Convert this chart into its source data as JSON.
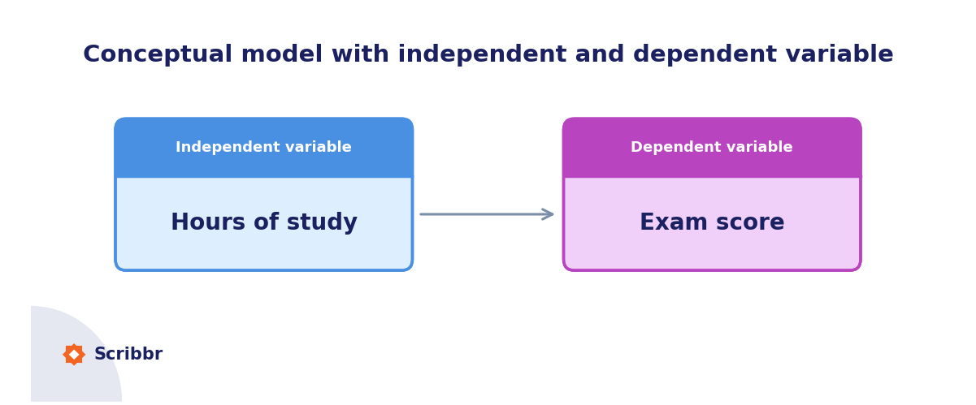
{
  "title": "Conceptual model with independent and dependent variable",
  "title_color": "#1a2060",
  "title_fontsize": 21,
  "background_color": "#ffffff",
  "box1_header_text": "Independent variable",
  "box1_body_text": "Hours of study",
  "box1_header_color": "#4a90e2",
  "box1_body_color": "#ddeeff",
  "box1_border_color": "#4a90e2",
  "box2_header_text": "Dependent variable",
  "box2_body_text": "Exam score",
  "box2_header_color": "#b844c0",
  "box2_body_color": "#f0d0f8",
  "box2_border_color": "#b844c0",
  "arrow_color": "#7a8fa6",
  "header_text_color": "#ffffff",
  "body_text_color": "#1a2060",
  "header_fontsize": 13,
  "body_fontsize": 20,
  "scribbr_text": "Scribbr",
  "scribbr_color": "#1a2060",
  "scribbr_fontsize": 15,
  "scribbr_icon_color": "#f26522"
}
